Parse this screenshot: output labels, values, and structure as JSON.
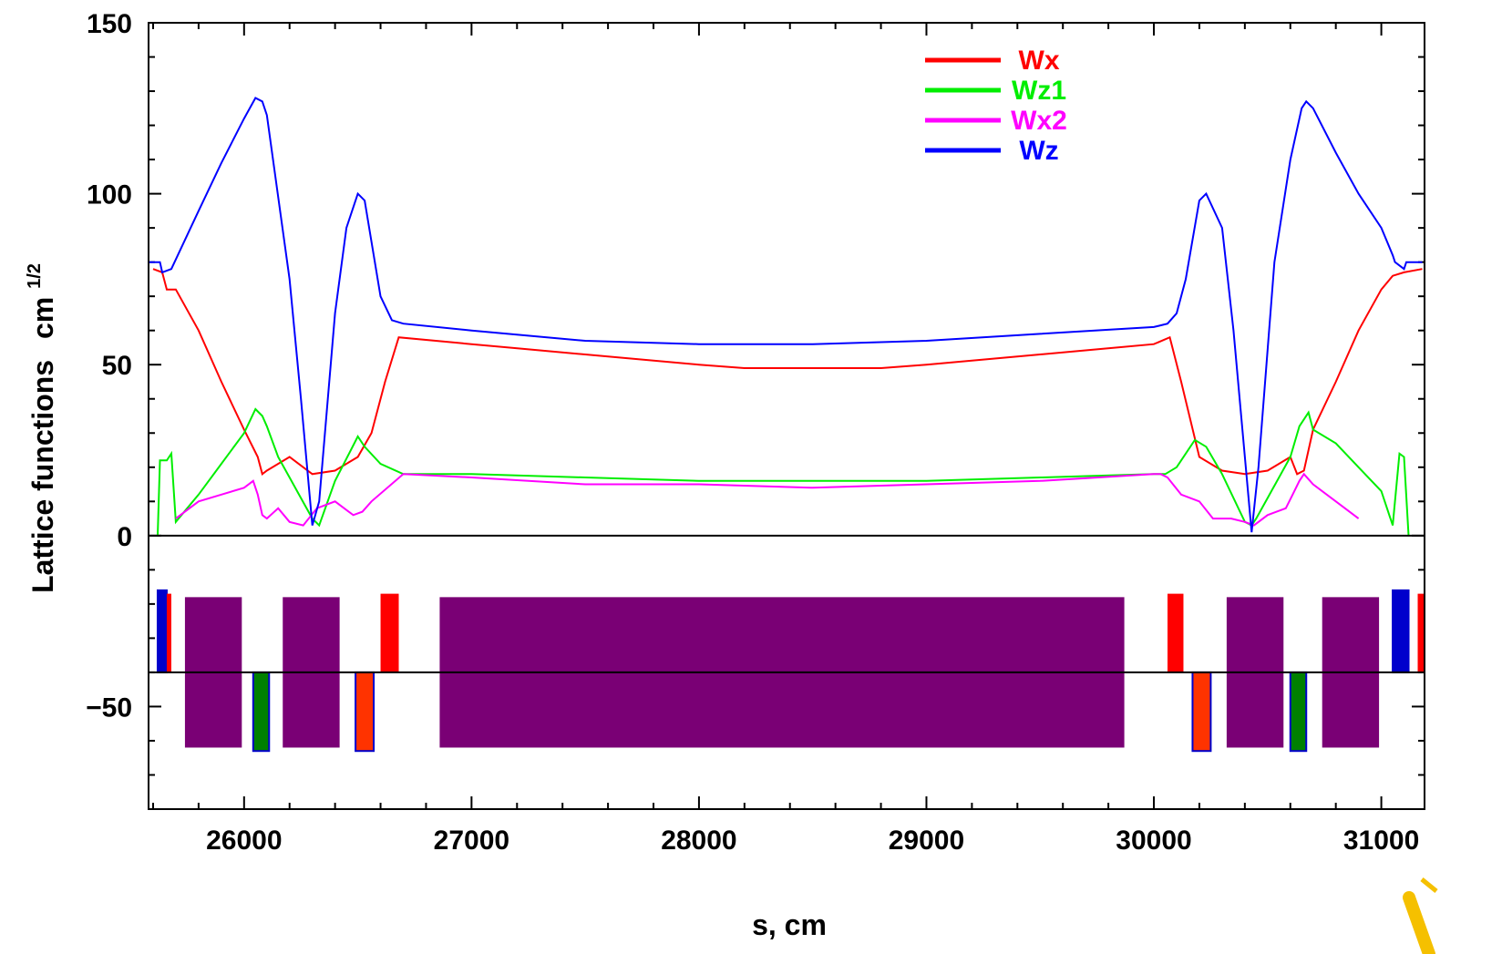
{
  "chart_data": {
    "type": "line",
    "xlabel": "s, cm",
    "ylabel": "Lattice functions",
    "ylabel_unit": "cm",
    "ylabel_unit_exp": "1/2",
    "xlim": [
      25580,
      31190
    ],
    "ylim": [
      -80,
      150
    ],
    "x_ticks": [
      {
        "value": 26000,
        "label": "26000"
      },
      {
        "value": 27000,
        "label": "27000"
      },
      {
        "value": 28000,
        "label": "28000"
      },
      {
        "value": 29000,
        "label": "29000"
      },
      {
        "value": 30000,
        "label": "30000"
      },
      {
        "value": 31000,
        "label": "31000"
      }
    ],
    "y_ticks": [
      {
        "value": 150,
        "label": "150"
      },
      {
        "value": 100,
        "label": "100"
      },
      {
        "value": 50,
        "label": "50"
      },
      {
        "value": 0,
        "label": "0"
      },
      {
        "value": -50,
        "label": "−50"
      }
    ],
    "legend_position": "top-right",
    "series": [
      {
        "name": "Wx",
        "color": "#ff0000",
        "x": [
          25600,
          25640,
          25660,
          25700,
          25800,
          25900,
          26000,
          26060,
          26080,
          26100,
          26200,
          26300,
          26400,
          26500,
          26560,
          26620,
          26680,
          27000,
          27500,
          28000,
          28200,
          28500,
          28800,
          29000,
          29500,
          30000,
          30070,
          30120,
          30200,
          30300,
          30400,
          30500,
          30600,
          30630,
          30660,
          30700,
          30800,
          30900,
          31000,
          31050,
          31100,
          31180
        ],
        "y": [
          78,
          77,
          72,
          72,
          60,
          45,
          31,
          23,
          18,
          19,
          23,
          18,
          19,
          23,
          30,
          45,
          58,
          56,
          53,
          50,
          49,
          49,
          49,
          50,
          53,
          56,
          58,
          45,
          23,
          19,
          18,
          19,
          23,
          18,
          19,
          31,
          45,
          60,
          72,
          76,
          77,
          78
        ]
      },
      {
        "name": "Wz1",
        "color": "#00ee00",
        "x": [
          25620,
          25630,
          25660,
          25680,
          25700,
          25800,
          25900,
          26000,
          26050,
          26080,
          26100,
          26150,
          26200,
          26250,
          26300,
          26330,
          26400,
          26500,
          26530,
          26600,
          26700,
          27000,
          27500,
          28000,
          28500,
          29000,
          29500,
          30000,
          30050,
          30100,
          30180,
          30230,
          30300,
          30400,
          30430,
          30450,
          30500,
          30600,
          30640,
          30680,
          30700,
          30800,
          30900,
          31000,
          31050,
          31080,
          31100,
          31120
        ],
        "y": [
          0,
          22,
          22,
          24,
          4,
          12,
          21,
          30,
          37,
          35,
          32,
          23,
          17,
          11,
          5,
          3,
          16,
          29,
          26,
          21,
          18,
          18,
          17,
          16,
          16,
          16,
          17,
          18,
          18,
          20,
          28,
          26,
          18,
          4,
          3,
          5,
          11,
          23,
          32,
          36,
          31,
          27,
          20,
          13,
          3,
          24,
          23,
          0
        ]
      },
      {
        "name": "Wx2",
        "color": "#ff00ff",
        "x": [
          25700,
          25800,
          25900,
          26000,
          26040,
          26060,
          26080,
          26100,
          26150,
          26200,
          26260,
          26320,
          26400,
          26480,
          26520,
          26560,
          26700,
          27000,
          27500,
          28000,
          28500,
          29000,
          29500,
          30000,
          30030,
          30060,
          30120,
          30200,
          30260,
          30340,
          30400,
          30440,
          30500,
          30580,
          30610,
          30640,
          30660,
          30700,
          30800,
          30900
        ],
        "y": [
          5,
          10,
          12,
          14,
          16,
          12,
          6,
          5,
          8,
          4,
          3,
          8,
          10,
          6,
          7,
          10,
          18,
          17,
          15,
          15,
          14,
          15,
          16,
          18,
          18,
          17,
          12,
          10,
          5,
          5,
          4,
          3,
          6,
          8,
          12,
          16,
          18,
          15,
          10,
          5
        ]
      },
      {
        "name": "Wz",
        "color": "#0000ff",
        "x": [
          25580,
          25610,
          25630,
          25640,
          25680,
          25800,
          25900,
          26000,
          26050,
          26080,
          26100,
          26200,
          26250,
          26300,
          26330,
          26400,
          26450,
          26500,
          26530,
          26600,
          26650,
          26700,
          27000,
          27500,
          28000,
          28500,
          29000,
          29500,
          30000,
          30060,
          30100,
          30140,
          30200,
          30230,
          30300,
          30350,
          30430,
          30460,
          30530,
          30600,
          30650,
          30670,
          30700,
          30800,
          30900,
          31000,
          31050,
          31060,
          31100,
          31110,
          31160,
          31180
        ],
        "y": [
          80,
          80,
          80,
          77,
          78,
          95,
          109,
          122,
          128,
          127,
          123,
          75,
          40,
          3,
          10,
          65,
          90,
          100,
          98,
          70,
          63,
          62,
          60,
          57,
          56,
          56,
          57,
          59,
          61,
          62,
          65,
          75,
          98,
          100,
          90,
          60,
          1,
          20,
          80,
          110,
          125,
          127,
          125,
          112,
          100,
          90,
          82,
          80,
          78,
          80,
          80,
          80
        ]
      }
    ],
    "elements": [
      {
        "type": "focusing",
        "start": 25620,
        "end": 25660,
        "color": "#0000cc"
      },
      {
        "type": "defocusing",
        "start": 25660,
        "end": 25680,
        "color": "#ff0000"
      },
      {
        "type": "dipole",
        "start": 25740,
        "end": 25990,
        "color": "#7a0075"
      },
      {
        "type": "corrector",
        "start": 26040,
        "end": 26110,
        "color": "#008000"
      },
      {
        "type": "dipole",
        "start": 26170,
        "end": 26420,
        "color": "#7a0075"
      },
      {
        "type": "corrector",
        "start": 26490,
        "end": 26570,
        "color": "#ff3300"
      },
      {
        "type": "defocusing",
        "start": 26600,
        "end": 26680,
        "color": "#ff0000"
      },
      {
        "type": "dipole",
        "start": 26860,
        "end": 29870,
        "color": "#7a0075"
      },
      {
        "type": "defocusing",
        "start": 30060,
        "end": 30130,
        "color": "#ff0000"
      },
      {
        "type": "corrector",
        "start": 30170,
        "end": 30250,
        "color": "#ff3300"
      },
      {
        "type": "dipole",
        "start": 30320,
        "end": 30570,
        "color": "#7a0075"
      },
      {
        "type": "corrector",
        "start": 30600,
        "end": 30670,
        "color": "#008000"
      },
      {
        "type": "dipole",
        "start": 30740,
        "end": 30990,
        "color": "#7a0075"
      },
      {
        "type": "focusing",
        "start": 31050,
        "end": 31120,
        "color": "#0000cc"
      },
      {
        "type": "defocusing",
        "start": 31160,
        "end": 31190,
        "color": "#ff0000"
      }
    ]
  }
}
